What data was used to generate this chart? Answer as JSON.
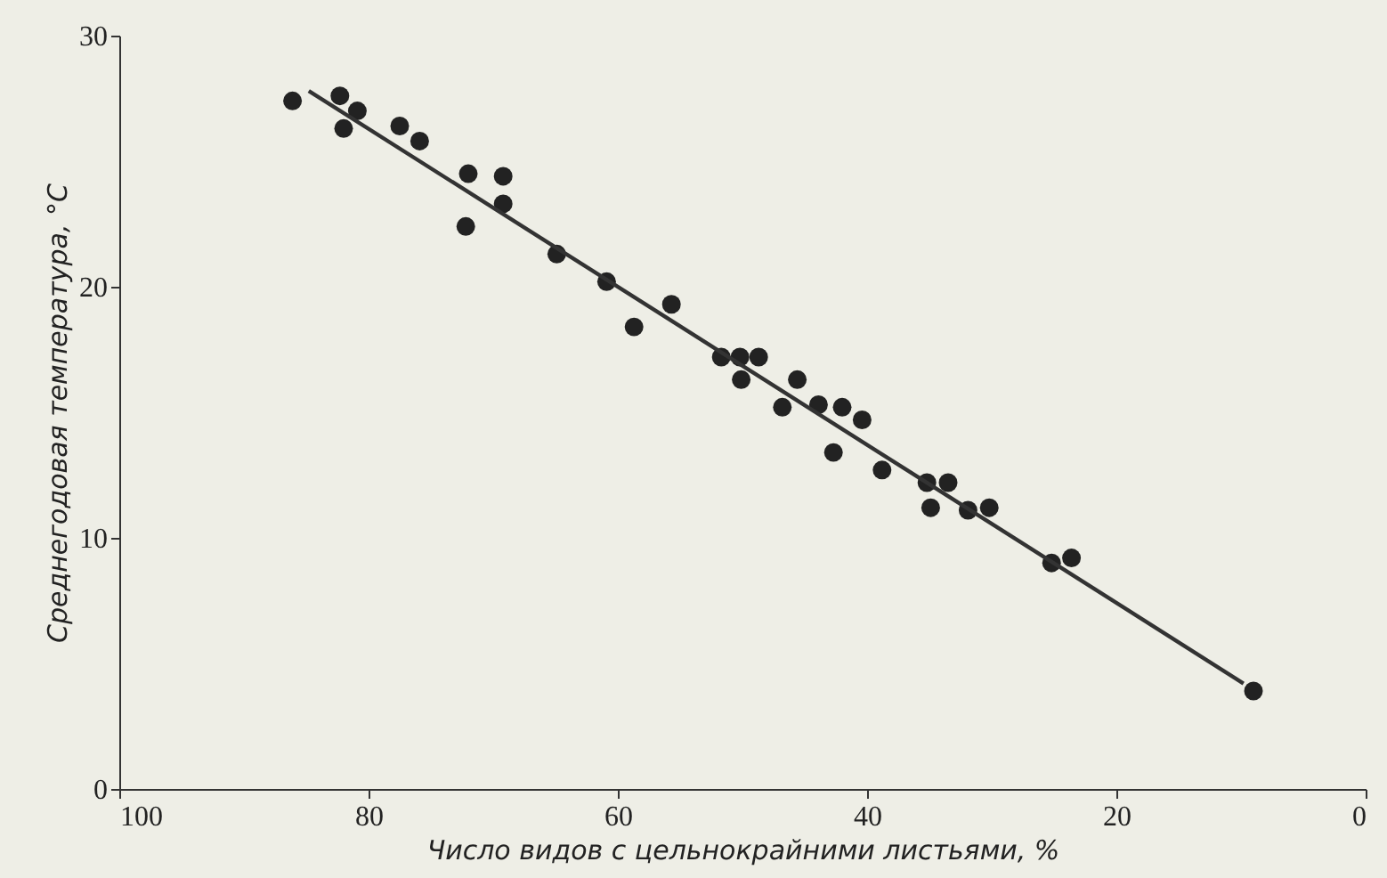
{
  "chart_data": {
    "type": "scatter",
    "xlabel": "Число видов с цельнокрайними листьями, %",
    "ylabel": "Среднегодовая температура, °C",
    "xlim": [
      100,
      0
    ],
    "xticks": [
      100,
      80,
      60,
      40,
      20,
      0
    ],
    "ylim": [
      0,
      30
    ],
    "yticks": [
      0,
      10,
      20,
      30
    ],
    "grid": false,
    "series": [
      {
        "marker": "circle",
        "color": "#222222",
        "x": [
          86.1,
          82.3,
          80.9,
          82.0,
          77.5,
          75.9,
          72.0,
          69.2,
          69.2,
          72.2,
          64.9,
          60.9,
          55.7,
          58.7,
          51.7,
          50.2,
          48.7,
          50.1,
          45.6,
          46.8,
          43.9,
          42.0,
          40.4,
          42.7,
          38.8,
          35.2,
          33.5,
          34.9,
          31.9,
          30.2,
          25.2,
          23.6,
          9.0
        ],
        "values": [
          27.4,
          27.6,
          27.0,
          26.3,
          26.4,
          25.8,
          24.5,
          24.4,
          23.3,
          22.4,
          21.3,
          20.2,
          19.3,
          18.4,
          17.2,
          17.2,
          17.2,
          16.3,
          16.3,
          15.2,
          15.3,
          15.2,
          14.7,
          13.4,
          12.7,
          12.2,
          12.2,
          11.2,
          11.1,
          11.2,
          9.0,
          9.2,
          3.9
        ]
      },
      {
        "type": "line",
        "marker": "none",
        "line_style": "solid",
        "color": "#333333",
        "x": [
          84.8,
          9.8
        ],
        "values": [
          27.8,
          4.2
        ]
      }
    ]
  }
}
